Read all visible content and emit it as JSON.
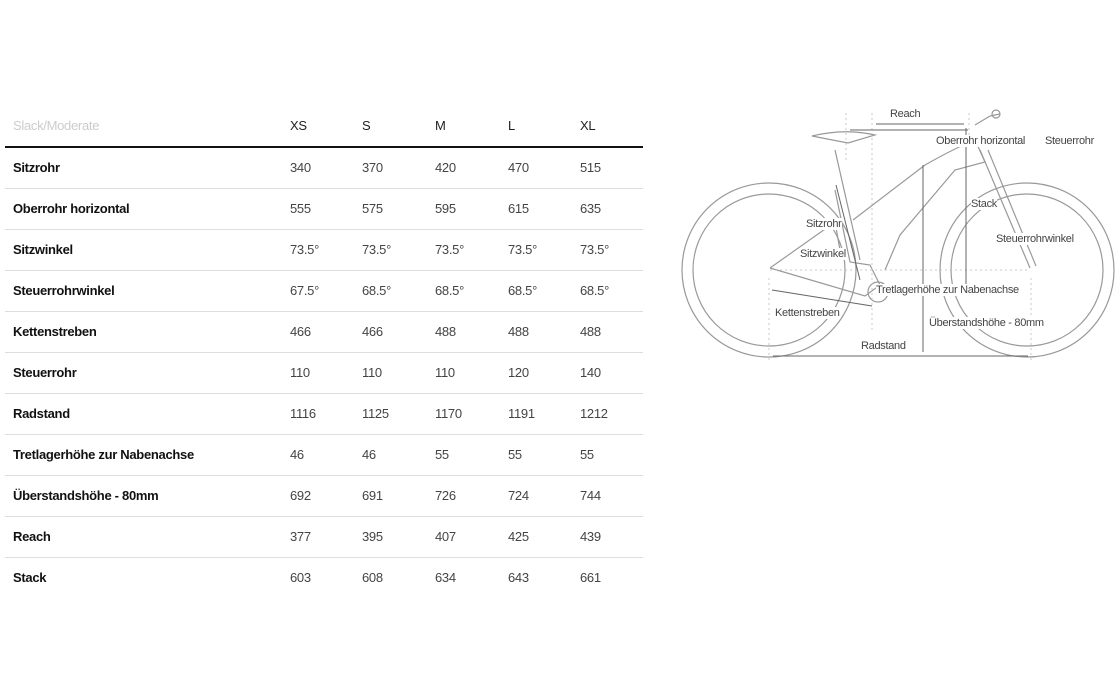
{
  "table": {
    "preset": "Slack/Moderate",
    "sizes": [
      "XS",
      "S",
      "M",
      "L",
      "XL"
    ],
    "rows": [
      {
        "label": "Sitzrohr",
        "values": [
          "340",
          "370",
          "420",
          "470",
          "515"
        ]
      },
      {
        "label": "Oberrohr horizontal",
        "values": [
          "555",
          "575",
          "595",
          "615",
          "635"
        ]
      },
      {
        "label": "Sitzwinkel",
        "values": [
          "73.5°",
          "73.5°",
          "73.5°",
          "73.5°",
          "73.5°"
        ]
      },
      {
        "label": "Steuerrohrwinkel",
        "values": [
          "67.5°",
          "68.5°",
          "68.5°",
          "68.5°",
          "68.5°"
        ]
      },
      {
        "label": "Kettenstreben",
        "values": [
          "466",
          "466",
          "488",
          "488",
          "488"
        ]
      },
      {
        "label": "Steuerrohr",
        "values": [
          "110",
          "110",
          "110",
          "120",
          "140"
        ]
      },
      {
        "label": "Radstand",
        "values": [
          "1116",
          "1125",
          "1170",
          "1191",
          "1212"
        ]
      },
      {
        "label": "Tretlagerhöhe zur Nabenachse",
        "values": [
          "46",
          "46",
          "55",
          "55",
          "55"
        ]
      },
      {
        "label": "Überstandshöhe - 80mm",
        "values": [
          "692",
          "691",
          "726",
          "724",
          "744"
        ]
      },
      {
        "label": "Reach",
        "values": [
          "377",
          "395",
          "407",
          "425",
          "439"
        ]
      },
      {
        "label": "Stack",
        "values": [
          "603",
          "608",
          "634",
          "643",
          "661"
        ]
      }
    ]
  },
  "diagram": {
    "labels": {
      "reach": "Reach",
      "oberrohr": "Oberrohr horizontal",
      "steuerrohr": "Steuerrohr",
      "stack": "Stack",
      "sitzrohr": "Sitzrohr",
      "steuerrohrwinkel": "Steuerrohrwinkel",
      "sitzwinkel": "Sitzwinkel",
      "tretlager": "Tretlagerhöhe zur Nabenachse",
      "kettenstreben": "Kettenstreben",
      "ueberstand": "Überstandshöhe - 80mm",
      "radstand": "Radstand"
    },
    "line_color": "#888888",
    "dim_color": "#666666"
  }
}
